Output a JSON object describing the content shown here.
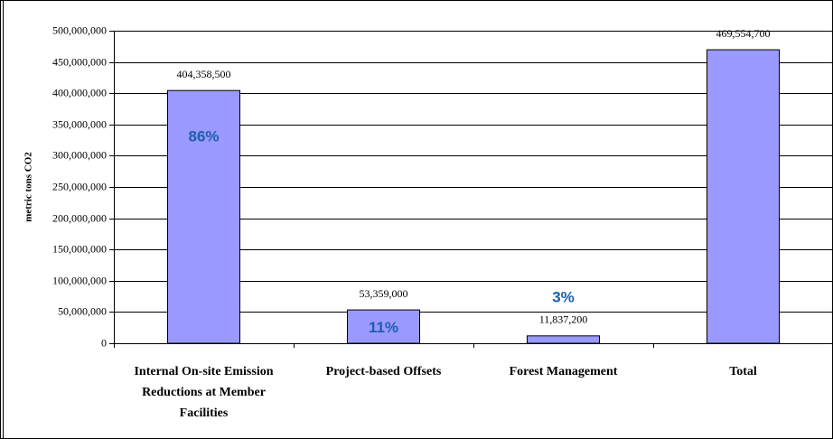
{
  "chart_data": {
    "type": "bar",
    "y_axis_label": "metric tons CO2",
    "categories": [
      "Internal On-site Emission Reductions at Member Facilities",
      "Project-based Offsets",
      "Forest Management",
      "Total"
    ],
    "values": [
      404358500,
      53359000,
      11837200,
      469554700
    ],
    "value_labels": [
      "404,358,500",
      "53,359,000",
      "11,837,200",
      "469,554,700"
    ],
    "share_labels": [
      "86%",
      "11%",
      "3%"
    ],
    "color": "#9999ff",
    "ylim": [
      0,
      500000000
    ],
    "yticks": [
      0,
      {
        "value": 50000000,
        "label": "50,000,000"
      },
      {
        "value": 100000000,
        "label": "100,000,000"
      },
      {
        "value": 150000000,
        "label": "150,000,000"
      },
      {
        "value": 200000000,
        "label": "200,000,000"
      },
      {
        "value": 250000000,
        "label": "250,000,000"
      },
      {
        "value": 300000000,
        "label": "300,000,000"
      },
      {
        "value": 350000000,
        "label": "350,000,000"
      },
      {
        "value": 400000000,
        "label": "400,000,000"
      },
      {
        "value": 450000000,
        "label": "450,000,000"
      },
      {
        "value": 500000000,
        "label": "500,000,000"
      }
    ],
    "grid": true
  }
}
